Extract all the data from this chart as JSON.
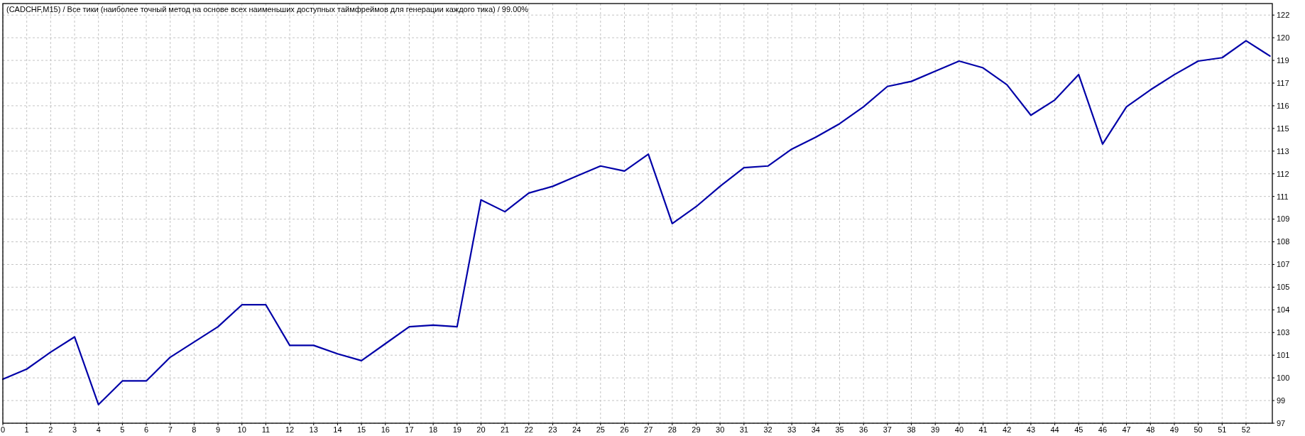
{
  "chart_data": {
    "type": "line",
    "title": "(CADCHF,M15) / Все тики (наиболее точный метод на основе всех наименьших доступных таймфреймов для генерации каждого тика) / 99.00%",
    "x": [
      0,
      1,
      2,
      3,
      4,
      5,
      6,
      7,
      8,
      9,
      10,
      11,
      12,
      13,
      14,
      15,
      16,
      17,
      18,
      19,
      20,
      21,
      22,
      23,
      24,
      25,
      26,
      27,
      28,
      29,
      30,
      31,
      32,
      33,
      34,
      35,
      36,
      37,
      38,
      39,
      40,
      41,
      42,
      43,
      44,
      45,
      46,
      47,
      48,
      49,
      50,
      51,
      52,
      53
    ],
    "values": [
      100.0,
      100.6,
      101.6,
      102.5,
      98.5,
      99.9,
      99.9,
      101.3,
      102.2,
      103.1,
      104.4,
      104.4,
      102.0,
      102.0,
      101.5,
      101.1,
      102.1,
      103.1,
      103.2,
      103.1,
      110.6,
      109.9,
      111.0,
      111.4,
      112.0,
      112.6,
      112.3,
      113.3,
      109.2,
      110.2,
      111.4,
      112.5,
      112.6,
      113.6,
      114.3,
      115.1,
      116.1,
      117.3,
      117.6,
      118.2,
      118.8,
      118.4,
      117.4,
      115.6,
      116.5,
      118.0,
      113.9,
      116.1,
      117.1,
      118.0,
      118.8,
      119.0,
      120.0,
      119.1
    ],
    "color": "#0000a8",
    "line_style": "solid",
    "xlim": [
      0,
      53.1
    ],
    "xticks": [
      0,
      1,
      2,
      3,
      4,
      5,
      6,
      7,
      8,
      9,
      10,
      11,
      12,
      13,
      14,
      15,
      16,
      17,
      18,
      19,
      20,
      21,
      22,
      23,
      24,
      25,
      26,
      27,
      28,
      29,
      30,
      31,
      32,
      33,
      34,
      35,
      36,
      37,
      38,
      39,
      40,
      41,
      42,
      43,
      44,
      45,
      46,
      47,
      48,
      49,
      50,
      51,
      52
    ],
    "ylim": [
      97.4,
      122.2
    ],
    "yticks": [
      {
        "value": 97.4,
        "label": "97"
      },
      {
        "value": 98.74,
        "label": "99"
      },
      {
        "value": 100.08,
        "label": "100"
      },
      {
        "value": 101.42,
        "label": "101"
      },
      {
        "value": 102.76,
        "label": "103"
      },
      {
        "value": 104.1,
        "label": "104"
      },
      {
        "value": 105.44,
        "label": "105"
      },
      {
        "value": 106.78,
        "label": "107"
      },
      {
        "value": 108.12,
        "label": "108"
      },
      {
        "value": 109.46,
        "label": "109"
      },
      {
        "value": 110.8,
        "label": "111"
      },
      {
        "value": 112.14,
        "label": "112"
      },
      {
        "value": 113.48,
        "label": "113"
      },
      {
        "value": 114.82,
        "label": "115"
      },
      {
        "value": 116.16,
        "label": "116"
      },
      {
        "value": 117.5,
        "label": "117"
      },
      {
        "value": 118.84,
        "label": "119"
      },
      {
        "value": 120.18,
        "label": "120"
      },
      {
        "value": 121.52,
        "label": "122"
      }
    ],
    "grid": true
  }
}
